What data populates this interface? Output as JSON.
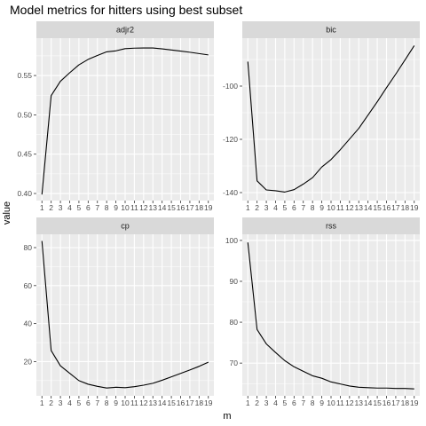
{
  "chart_data": {
    "type": "line",
    "title": "Model metrics for hitters using best subset",
    "xlabel": "m",
    "ylabel": "value",
    "colors": {
      "panel_bg": "#ebebeb",
      "grid": "#ffffff",
      "strip_bg": "#d9d9d9",
      "line": "#000000"
    },
    "x": [
      1,
      2,
      3,
      4,
      5,
      6,
      7,
      8,
      9,
      10,
      11,
      12,
      13,
      14,
      15,
      16,
      17,
      18,
      19
    ],
    "panels": [
      {
        "name": "adjr2",
        "ylim": [
          0.391,
          0.5975
        ],
        "yticks": [
          0.4,
          0.45,
          0.5,
          0.55
        ],
        "ytick_labels": [
          "0.40",
          "0.45",
          "0.50",
          "0.55"
        ],
        "values": [
          0.3987,
          0.5245,
          0.5427,
          0.5535,
          0.5636,
          0.5705,
          0.5755,
          0.5801,
          0.5814,
          0.5842,
          0.5848,
          0.585,
          0.585,
          0.5839,
          0.5825,
          0.5811,
          0.5796,
          0.5779,
          0.5762
        ]
      },
      {
        "name": "bic",
        "ylim": [
          -143.0,
          -82.0
        ],
        "yticks": [
          -140,
          -120,
          -100
        ],
        "ytick_labels": [
          "-140",
          "-120",
          "-100"
        ],
        "values": [
          -90.8,
          -135.6,
          -139.0,
          -139.3,
          -139.8,
          -138.9,
          -136.8,
          -134.4,
          -130.4,
          -127.6,
          -123.9,
          -119.9,
          -115.9,
          -110.9,
          -105.9,
          -100.6,
          -95.5,
          -90.2,
          -84.8
        ]
      },
      {
        "name": "cp",
        "ylim": [
          2.0,
          87.0
        ],
        "yticks": [
          20,
          40,
          60,
          80
        ],
        "ytick_labels": [
          "20",
          "40",
          "60",
          "80"
        ],
        "values": [
          83.5,
          25.8,
          17.8,
          13.9,
          10.0,
          8.1,
          7.0,
          6.1,
          6.5,
          6.3,
          6.8,
          7.6,
          8.6,
          10.2,
          12.0,
          13.8,
          15.6,
          17.5,
          19.7
        ]
      },
      {
        "name": "rss",
        "ylim": [
          62.0,
          101.5
        ],
        "yticks": [
          70,
          80,
          90,
          100
        ],
        "ytick_labels": [
          "70",
          "80",
          "90",
          "100"
        ],
        "values": [
          99.5,
          78.2,
          74.7,
          72.6,
          70.6,
          69.1,
          68.0,
          66.9,
          66.3,
          65.4,
          64.9,
          64.4,
          64.1,
          64.0,
          63.9,
          63.9,
          63.8,
          63.8,
          63.7
        ]
      }
    ]
  }
}
